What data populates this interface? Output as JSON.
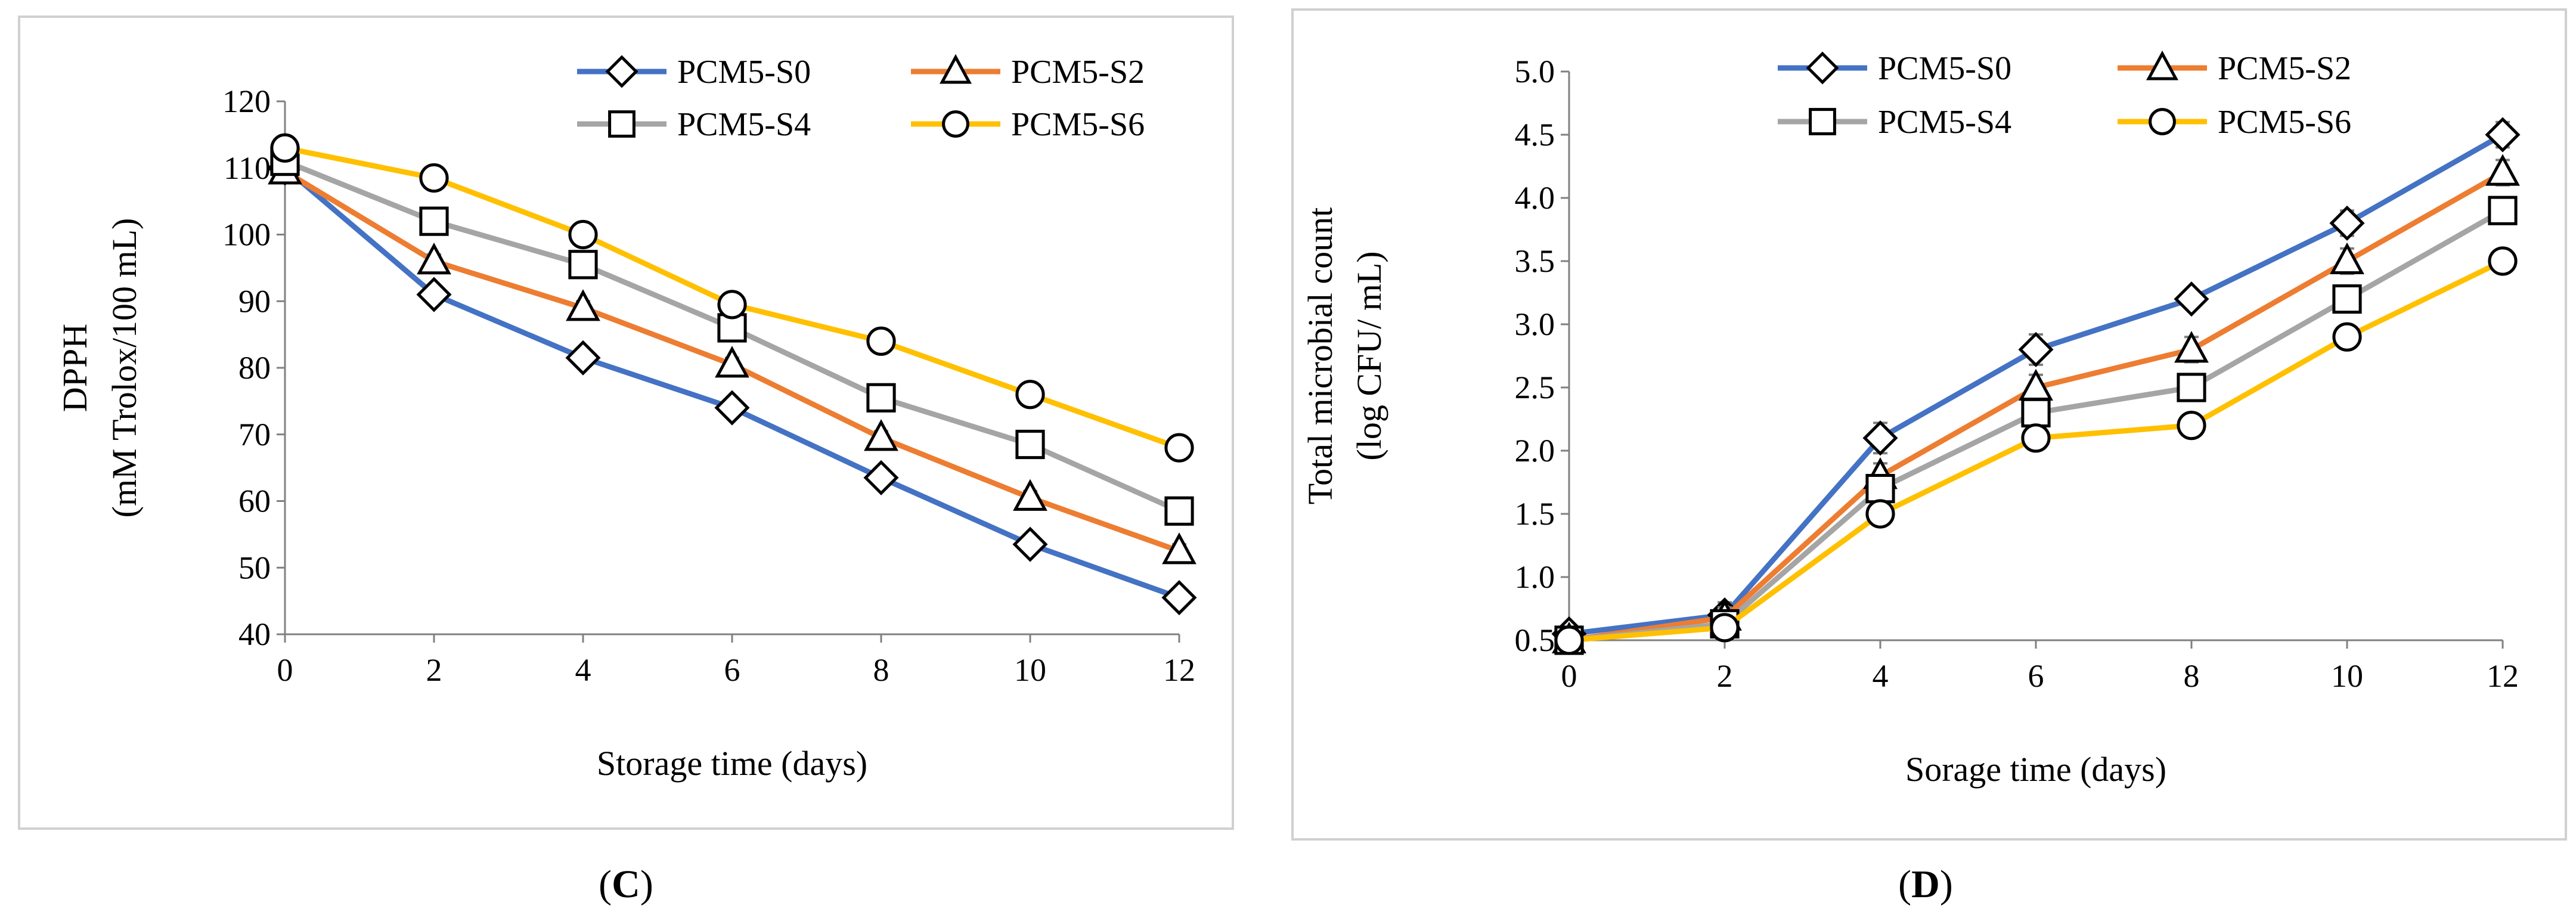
{
  "series_colors": [
    "#4472C4",
    "#ED7D31",
    "#A5A5A5",
    "#FFC000"
  ],
  "series_markers": [
    "diamond",
    "triangle",
    "square",
    "circle"
  ],
  "chart_data": [
    {
      "type": "line",
      "panel_label": "(C)",
      "panel_letter": "C",
      "xlabel": "Storage time (days)",
      "ylabel_line1": "DPPH",
      "ylabel_line2": "(mM Trolox/100 mL)",
      "x": [
        0,
        2,
        4,
        6,
        8,
        10,
        12
      ],
      "xticks": [
        0,
        2,
        4,
        6,
        8,
        10,
        12
      ],
      "ylim": [
        40,
        120
      ],
      "yticks": [
        40,
        50,
        60,
        70,
        80,
        90,
        100,
        110,
        120
      ],
      "ytick_decimals": 0,
      "grid": false,
      "legend_placement": "top-right",
      "series": [
        {
          "name": "PCM5-S0",
          "values": [
            110,
            91,
            81.5,
            74,
            63.5,
            53.5,
            45.5
          ],
          "errors": [
            1,
            1,
            1,
            1,
            1,
            1,
            1
          ]
        },
        {
          "name": "PCM5-S2",
          "values": [
            109.5,
            96,
            89,
            80.5,
            69.5,
            60.5,
            52.5
          ],
          "errors": [
            1,
            1,
            1,
            1,
            1,
            1,
            1
          ]
        },
        {
          "name": "PCM5-S4",
          "values": [
            111,
            102,
            95.5,
            86,
            75.5,
            68.5,
            58.5
          ],
          "errors": [
            1,
            1.5,
            1.5,
            1.5,
            1.5,
            1.5,
            1.5
          ]
        },
        {
          "name": "PCM5-S6",
          "values": [
            113,
            108.5,
            100,
            89.5,
            84,
            76,
            68
          ],
          "errors": [
            1,
            1,
            1,
            1,
            1,
            1,
            1
          ]
        }
      ]
    },
    {
      "type": "line",
      "panel_label": "(D)",
      "panel_letter": "D",
      "xlabel": "Sorage time (days)",
      "ylabel_line1": "Total microbial count",
      "ylabel_line2": "(log CFU/ mL)",
      "x": [
        0,
        2,
        4,
        6,
        8,
        10,
        12
      ],
      "xticks": [
        0,
        2,
        4,
        6,
        8,
        10,
        12
      ],
      "ylim": [
        0.5,
        5.0
      ],
      "yticks": [
        0.5,
        1.0,
        1.5,
        2.0,
        2.5,
        3.0,
        3.5,
        4.0,
        4.5,
        5.0
      ],
      "ytick_decimals": 1,
      "grid": false,
      "legend_placement": "top-right",
      "series": [
        {
          "name": "PCM5-S0",
          "values": [
            0.55,
            0.7,
            2.1,
            2.8,
            3.2,
            3.8,
            4.5
          ],
          "errors": [
            0.02,
            0.1,
            0.12,
            0.12,
            0.05,
            0.1,
            0.1
          ]
        },
        {
          "name": "PCM5-S2",
          "values": [
            0.5,
            0.68,
            1.8,
            2.5,
            2.8,
            3.5,
            4.2
          ],
          "errors": [
            0.02,
            0.08,
            0.1,
            0.1,
            0.1,
            0.1,
            0.1
          ]
        },
        {
          "name": "PCM5-S4",
          "values": [
            0.5,
            0.63,
            1.7,
            2.3,
            2.5,
            3.2,
            3.9
          ],
          "errors": [
            0.02,
            0.08,
            0.1,
            0.1,
            0.1,
            0.1,
            0.1
          ]
        },
        {
          "name": "PCM5-S6",
          "values": [
            0.5,
            0.6,
            1.5,
            2.1,
            2.2,
            2.9,
            3.5
          ],
          "errors": [
            0.02,
            0.08,
            0.08,
            0.08,
            0.08,
            0.08,
            0.08
          ]
        }
      ]
    }
  ]
}
